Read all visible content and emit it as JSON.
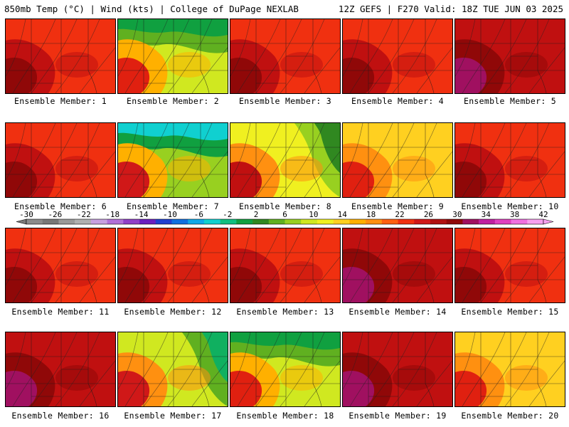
{
  "header": {
    "left": "850mb Temp (°C) | Wind (kts) | College of DuPage NEXLAB",
    "right": "12Z GEFS | F270 Valid: 18Z TUE JUN 03 2025"
  },
  "members": [
    {
      "label": "Ensemble Member: 1",
      "theme": "hot"
    },
    {
      "label": "Ensemble Member: 2",
      "theme": "cool_ne"
    },
    {
      "label": "Ensemble Member: 3",
      "theme": "hot"
    },
    {
      "label": "Ensemble Member: 4",
      "theme": "hot"
    },
    {
      "label": "Ensemble Member: 5",
      "theme": "veryhot"
    },
    {
      "label": "Ensemble Member: 6",
      "theme": "hot"
    },
    {
      "label": "Ensemble Member: 7",
      "theme": "cold_n"
    },
    {
      "label": "Ensemble Member: 8",
      "theme": "cool_e"
    },
    {
      "label": "Ensemble Member: 9",
      "theme": "warm"
    },
    {
      "label": "Ensemble Member: 10",
      "theme": "hot"
    },
    {
      "label": "Ensemble Member: 11",
      "theme": "hot"
    },
    {
      "label": "Ensemble Member: 12",
      "theme": "hot"
    },
    {
      "label": "Ensemble Member: 13",
      "theme": "hot"
    },
    {
      "label": "Ensemble Member: 14",
      "theme": "veryhot"
    },
    {
      "label": "Ensemble Member: 15",
      "theme": "hot"
    },
    {
      "label": "Ensemble Member: 16",
      "theme": "veryhot"
    },
    {
      "label": "Ensemble Member: 17",
      "theme": "cool_e2"
    },
    {
      "label": "Ensemble Member: 18",
      "theme": "cool_ne"
    },
    {
      "label": "Ensemble Member: 19",
      "theme": "veryhot"
    },
    {
      "label": "Ensemble Member: 20",
      "theme": "warm"
    }
  ],
  "colorbar": {
    "labels": [
      "-30",
      "-26",
      "-22",
      "-18",
      "-14",
      "-10",
      "-6",
      "-2",
      "2",
      "6",
      "10",
      "14",
      "18",
      "22",
      "26",
      "30",
      "34",
      "38",
      "42"
    ],
    "colors": [
      "#8c8c8c",
      "#787878",
      "#9a9a9a",
      "#b0b0b0",
      "#c8a0e0",
      "#b070d8",
      "#9040c8",
      "#6a20c0",
      "#2040d0",
      "#1070e0",
      "#10a8e8",
      "#10d0d0",
      "#10c080",
      "#10a040",
      "#308820",
      "#60b020",
      "#98d020",
      "#d0e820",
      "#f0f020",
      "#ffd020",
      "#ffb000",
      "#ff9010",
      "#ff6010",
      "#f03010",
      "#d01818",
      "#b01010",
      "#900808",
      "#a01060",
      "#c020a0",
      "#e040c0",
      "#f070e0",
      "#f8a0f0"
    ]
  }
}
